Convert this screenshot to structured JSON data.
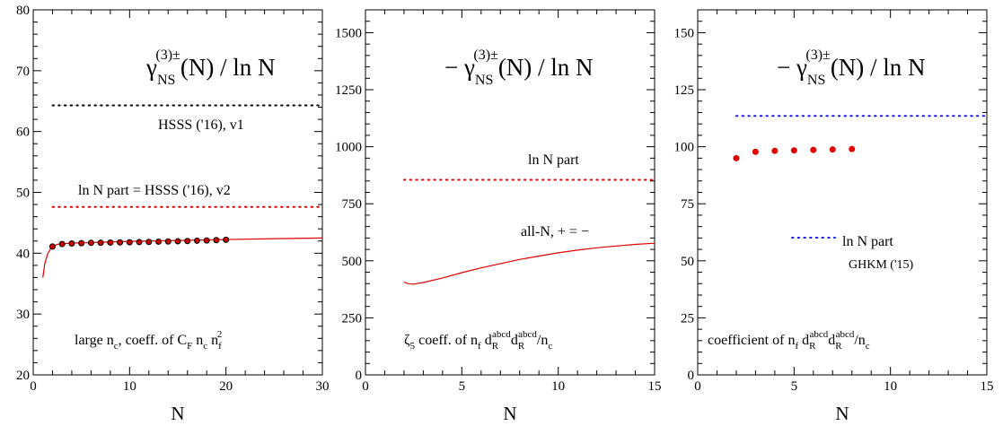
{
  "chart_data": [
    {
      "type": "line",
      "xlabel": "N",
      "ylabel": "",
      "xlim": [
        0,
        30
      ],
      "ylim": [
        20,
        80
      ],
      "xticks": [
        0,
        10,
        20,
        30
      ],
      "yticks": [
        20,
        30,
        40,
        50,
        60,
        70,
        80
      ],
      "title_parts": {
        "main": "γ",
        "sub": "NS",
        "sup": "(3)±",
        "rest": "(N) / ln N"
      },
      "caption_parts": {
        "a": "large n",
        "b": "c",
        "c": ", coeff. of C",
        "d": "F",
        "e": " n",
        "f": "c",
        "g": " n",
        "h": "f",
        "i": "2"
      },
      "series": [
        {
          "name": "HSSS ('16), v1",
          "style": "dotted",
          "color": "#000000",
          "x": [
            2,
            30
          ],
          "y": [
            64.3,
            64.3
          ]
        },
        {
          "name": "ln N part = HSSS ('16), v2",
          "style": "dotted",
          "color": "#e00000",
          "x": [
            2,
            30
          ],
          "y": [
            47.6,
            47.6
          ]
        },
        {
          "name": "",
          "style": "solid",
          "color": "#e00000",
          "x": [
            1,
            1.2,
            1.5,
            1.8,
            2,
            2.5,
            3,
            4,
            5,
            7,
            10,
            15,
            20,
            25,
            30
          ],
          "y": [
            36.0,
            38.3,
            39.9,
            40.7,
            41.1,
            41.45,
            41.55,
            41.65,
            41.7,
            41.8,
            41.95,
            42.1,
            42.25,
            42.4,
            42.5
          ]
        },
        {
          "name": "",
          "style": "markers",
          "color": "#cc0000",
          "edge": "#000000",
          "x": [
            2,
            3,
            4,
            5,
            6,
            7,
            8,
            9,
            10,
            11,
            12,
            13,
            14,
            15,
            16,
            17,
            18,
            19,
            20
          ],
          "y": [
            41.1,
            41.5,
            41.6,
            41.65,
            41.7,
            41.72,
            41.75,
            41.78,
            41.8,
            41.83,
            41.86,
            41.9,
            41.93,
            41.96,
            42.0,
            42.05,
            42.1,
            42.15,
            42.2
          ]
        }
      ]
    },
    {
      "type": "line",
      "xlabel": "N",
      "ylabel": "",
      "xlim": [
        0,
        15
      ],
      "ylim": [
        0,
        1600
      ],
      "xticks": [
        0,
        5,
        10,
        15
      ],
      "yticks": [
        0,
        250,
        500,
        750,
        1000,
        1250,
        1500
      ],
      "title_parts": {
        "main": "− γ",
        "sub": "NS",
        "sup": "(3)±",
        "rest": "(N) / ln N"
      },
      "caption_parts": {
        "a": "ζ",
        "b": "5",
        "c": " coeff. of n",
        "d": "f",
        "e": " d",
        "f": "R",
        "g": "abcd",
        "h": "d",
        "i": "R",
        "j": "abcd",
        "k": "/n",
        "l": "c"
      },
      "series": [
        {
          "name": "ln N part",
          "style": "dotted",
          "color": "#e00000",
          "x": [
            2,
            15
          ],
          "y": [
            855,
            855
          ]
        },
        {
          "name": "all-N, + = −",
          "style": "solid",
          "color": "#e00000",
          "x": [
            2,
            2.2,
            2.5,
            3,
            4,
            5,
            6,
            7,
            8,
            9,
            10,
            11,
            12,
            13,
            14,
            15
          ],
          "y": [
            407,
            400,
            398,
            405,
            425,
            448,
            469,
            488,
            506,
            521,
            535,
            547,
            557,
            565,
            572,
            577
          ]
        }
      ]
    },
    {
      "type": "scatter",
      "xlabel": "N",
      "ylabel": "",
      "xlim": [
        0,
        15
      ],
      "ylim": [
        0,
        160
      ],
      "xticks": [
        0,
        5,
        10,
        15
      ],
      "yticks": [
        0,
        25,
        50,
        75,
        100,
        125,
        150
      ],
      "title_parts": {
        "main": "− γ",
        "sub": "NS",
        "sup": "(3)±",
        "rest": "(N) / ln N"
      },
      "caption_parts": {
        "a": "coefficient of n",
        "b": "f",
        "c": " d",
        "d": "R",
        "e": "abcd",
        "f": "d",
        "g": "R",
        "h": "abcd",
        "i": "/n",
        "j": "c"
      },
      "series": [
        {
          "name": "ln N part",
          "style": "dotted",
          "color": "#1a1aff",
          "x": [
            2,
            15
          ],
          "y": [
            113.5,
            113.5
          ]
        },
        {
          "name": "",
          "style": "markers",
          "color": "#e00000",
          "edge": "#e00000",
          "x": [
            2,
            3,
            4,
            5,
            6,
            7,
            8
          ],
          "y": [
            95,
            97.8,
            98.2,
            98.4,
            98.6,
            98.8,
            99
          ]
        }
      ],
      "legend_source": "GHKM ('15)"
    }
  ]
}
